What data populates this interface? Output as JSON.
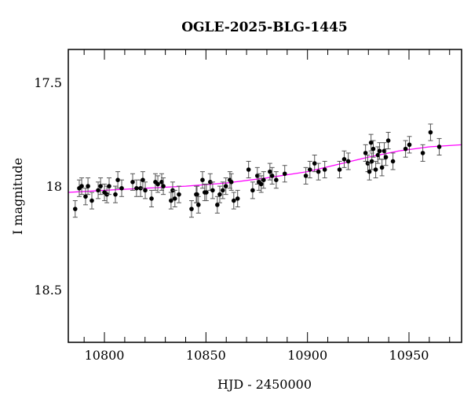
{
  "chart_data": {
    "type": "scatter",
    "title": "OGLE-2025-BLG-1445",
    "xlabel": "HJD - 2450000",
    "ylabel": "I magnitude",
    "xlim": [
      10782.2,
      10975.9
    ],
    "ylim": [
      18.754,
      17.34
    ],
    "y_inverted": true,
    "xticks": [
      10800,
      10850,
      10900,
      10950
    ],
    "xtick_labels": [
      "10800",
      "10850",
      "10900",
      "10950"
    ],
    "yticks": [
      17.5,
      18,
      18.5
    ],
    "ytick_labels": [
      "17.5",
      "18",
      "18.5"
    ],
    "grid": false,
    "colors": {
      "points": "#000000",
      "model": "#ff00ff"
    },
    "error": 0.04,
    "series": [
      {
        "name": "data",
        "x": [
          10785.6,
          10787.6,
          10788.8,
          10790.7,
          10791.9,
          10793.8,
          10796.9,
          10798.1,
          10800,
          10801.2,
          10802.3,
          10805.4,
          10806.6,
          10808.5,
          10813.9,
          10815.8,
          10817.8,
          10818.9,
          10820.1,
          10823.2,
          10825.1,
          10826.3,
          10828.2,
          10829,
          10832.8,
          10833.6,
          10834.7,
          10836.7,
          10842.9,
          10845.2,
          10845.6,
          10846.3,
          10848.3,
          10849.4,
          10850.2,
          10852.1,
          10853.3,
          10855.6,
          10856.8,
          10858.3,
          10859.8,
          10861.8,
          10862.5,
          10863.7,
          10865.6,
          10871,
          10873,
          10875.3,
          10876.1,
          10877.2,
          10878.4,
          10881.5,
          10882.6,
          10884.6,
          10888.8,
          10899.2,
          10901.2,
          10903.5,
          10905.4,
          10908.5,
          10915.8,
          10918.1,
          10920.1,
          10928.6,
          10929.7,
          10930.5,
          10931.3,
          10931.7,
          10932.4,
          10933.6,
          10934.7,
          10935.5,
          10936.7,
          10937.8,
          10938.6,
          10939.8,
          10942.1,
          10948.3,
          10950.2,
          10956.8,
          10960.6,
          10964.9
        ],
        "y": [
          18.11,
          18.01,
          18.0,
          18.05,
          18.0,
          18.07,
          18.02,
          18.0,
          18.03,
          18.04,
          18.0,
          18.04,
          17.97,
          18.01,
          17.98,
          18.01,
          18.01,
          17.97,
          18.02,
          18.06,
          17.98,
          17.99,
          17.98,
          18.0,
          18.07,
          18.02,
          18.06,
          18.04,
          18.11,
          18.04,
          18.04,
          18.09,
          17.97,
          18.03,
          18.03,
          17.98,
          18.02,
          18.09,
          18.04,
          18.02,
          18.0,
          17.97,
          17.98,
          18.07,
          18.06,
          17.92,
          18.02,
          17.95,
          17.98,
          17.99,
          17.97,
          17.93,
          17.95,
          17.97,
          17.94,
          17.95,
          17.92,
          17.89,
          17.93,
          17.92,
          17.92,
          17.87,
          17.88,
          17.84,
          17.89,
          17.93,
          17.79,
          17.88,
          17.82,
          17.92,
          17.85,
          17.83,
          17.91,
          17.83,
          17.86,
          17.78,
          17.88,
          17.82,
          17.8,
          17.84,
          17.74,
          17.81
        ]
      },
      {
        "name": "model",
        "x": [
          10782.2,
          10800,
          10820,
          10840,
          10860,
          10880,
          10900,
          10915,
          10930,
          10945,
          10960,
          10975.9
        ],
        "y": [
          18.03,
          18.02,
          18.01,
          18.0,
          17.985,
          17.96,
          17.93,
          17.895,
          17.86,
          17.83,
          17.81,
          17.8
        ]
      }
    ]
  }
}
